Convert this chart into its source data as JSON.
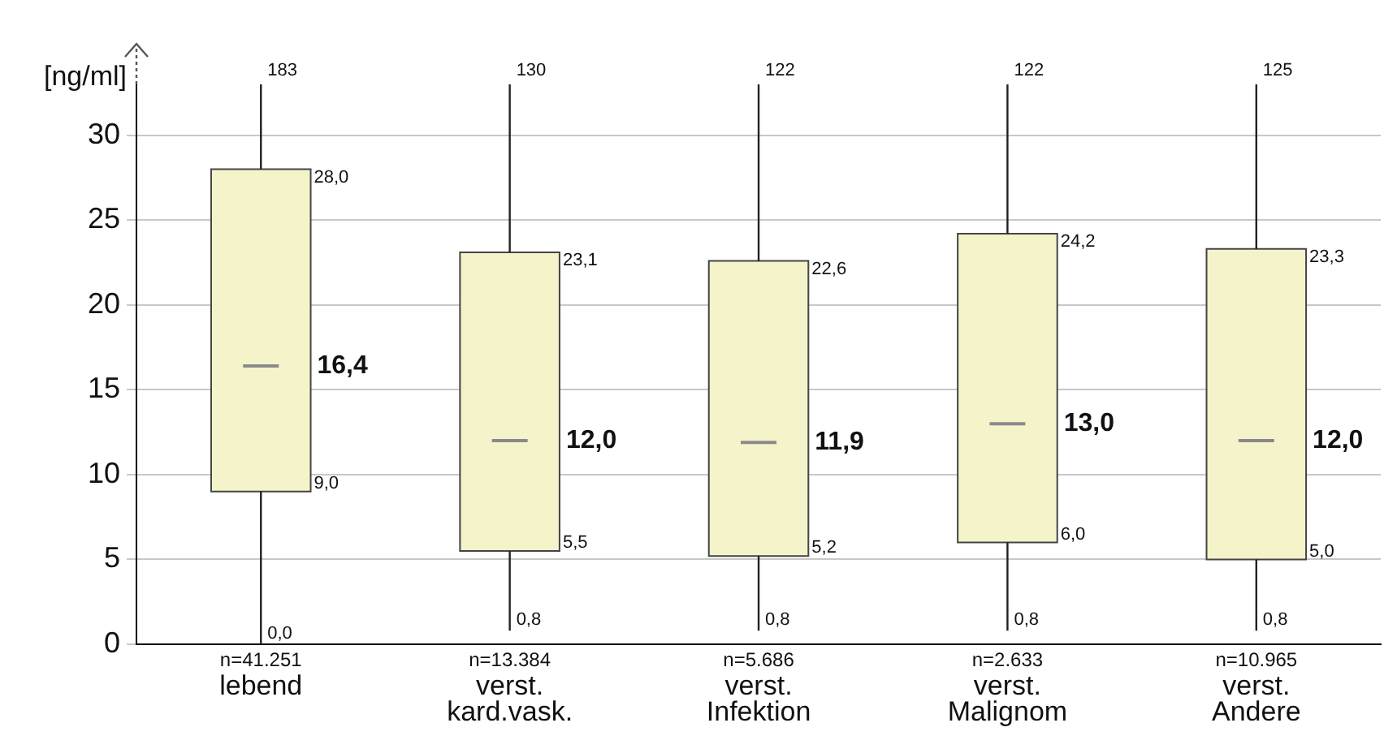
{
  "chart_data": {
    "type": "box",
    "ylabel": "[ng/ml]",
    "categories": [
      "lebend",
      "verst. kard.vask.",
      "verst. Infektion",
      "verst. Malignom",
      "verst. Andere"
    ],
    "boxes": [
      {
        "low": 0.0,
        "q1": 9.0,
        "median": 16.4,
        "q3": 28.0,
        "high": null
      },
      {
        "low": 0.8,
        "q1": 5.5,
        "median": 12.0,
        "q3": 23.1,
        "high": null
      },
      {
        "low": 0.8,
        "q1": 5.2,
        "median": 11.9,
        "q3": 22.6,
        "high": null
      },
      {
        "low": 0.8,
        "q1": 6.0,
        "median": 13.0,
        "q3": 24.2,
        "high": null
      },
      {
        "low": 0.8,
        "q1": 5.0,
        "median": 12.0,
        "q3": 23.3,
        "high": null
      }
    ],
    "color": "#f5f3c9",
    "ylim": [
      0,
      33
    ],
    "yticks": [
      0,
      5,
      10,
      15,
      20,
      25,
      30
    ],
    "grid": "y",
    "legend": false,
    "annotations": [
      "183",
      "n=41.251",
      {
        "text": "28,0",
        "x": "lebend",
        "y": 28.0
      },
      {
        "text": "16,4",
        "x": "lebend",
        "y": 16.4
      },
      {
        "text": "9,0",
        "x": "lebend",
        "y": 9.0
      },
      {
        "text": "0,0",
        "x": "lebend",
        "y": 0.0
      },
      "130",
      "n=13.384",
      {
        "text": "23,1",
        "x": "verst. kard.vask.",
        "y": 23.1
      },
      {
        "text": "12,0",
        "x": "verst. kard.vask.",
        "y": 12.0
      },
      {
        "text": "5,5",
        "x": "verst. kard.vask.",
        "y": 5.5
      },
      {
        "text": "0,8",
        "x": "verst. kard.vask.",
        "y": 0.8
      },
      "122",
      "n=5.686",
      {
        "text": "22,6",
        "x": "verst. Infektion",
        "y": 22.6
      },
      {
        "text": "11,9",
        "x": "verst. Infektion",
        "y": 11.9
      },
      {
        "text": "5,2",
        "x": "verst. Infektion",
        "y": 5.2
      },
      {
        "text": "0,8",
        "x": "verst. Infektion",
        "y": 0.8
      },
      "122",
      "n=2.633",
      {
        "text": "24,2",
        "x": "verst. Malignom",
        "y": 24.2
      },
      {
        "text": "13,0",
        "x": "verst. Malignom",
        "y": 13.0
      },
      {
        "text": "6,0",
        "x": "verst. Malignom",
        "y": 6.0
      },
      {
        "text": "0,8",
        "x": "verst. Malignom",
        "y": 0.8
      },
      "125",
      "n=10.965",
      {
        "text": "23,3",
        "x": "verst. Andere",
        "y": 23.3
      },
      {
        "text": "12,0",
        "x": "verst. Andere",
        "y": 12.0
      },
      {
        "text": "5,0",
        "x": "verst. Andere",
        "y": 5.0
      },
      {
        "text": "0,8",
        "x": "verst. Andere",
        "y": 0.8
      }
    ]
  }
}
